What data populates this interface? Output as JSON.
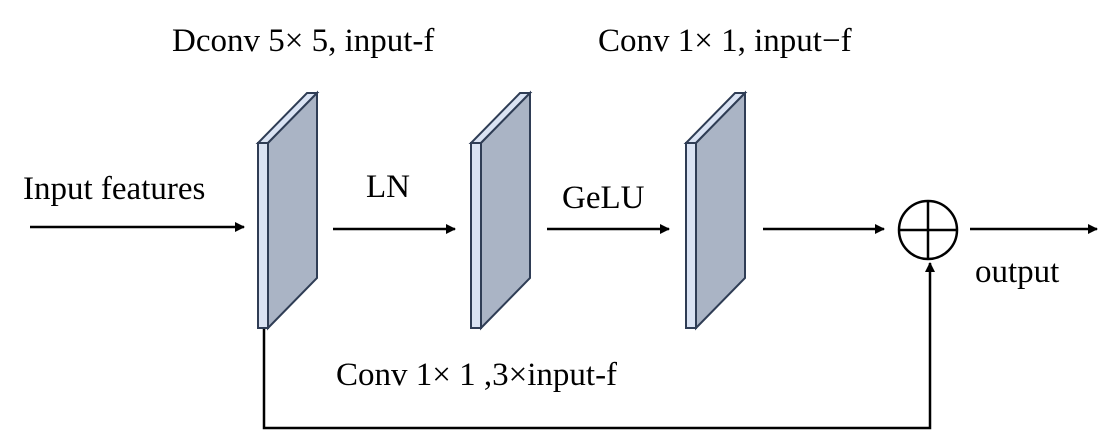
{
  "labels": {
    "dconv": "Dconv 5× 5, input-f",
    "conv_top": "Conv 1× 1, input−f",
    "input": "Input features",
    "ln": "LN",
    "gelu": "GeLU",
    "output": "output",
    "conv_bottom": "Conv 1× 1 ,3×input-f"
  },
  "colors": {
    "block_front": "#aab4c5",
    "block_edge": "#dae3f3",
    "block_stroke": "#2f3d55",
    "line": "#000000"
  },
  "icons": {
    "sum": "circle-plus-icon"
  }
}
